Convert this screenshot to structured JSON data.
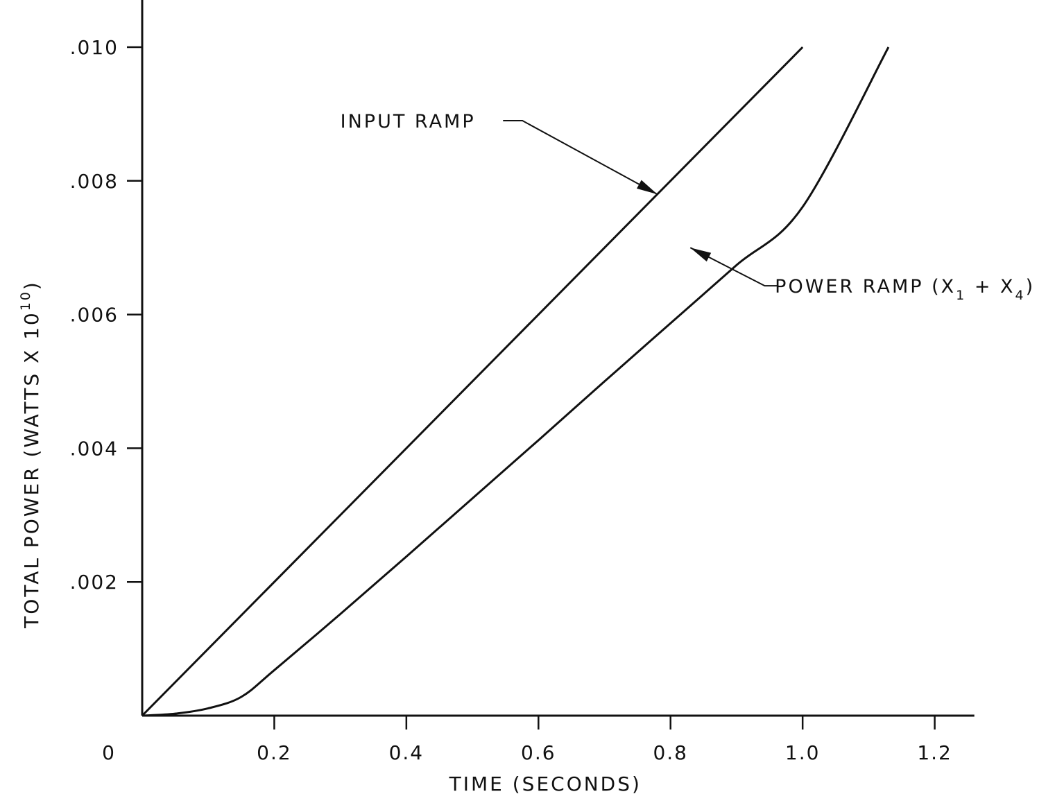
{
  "chart_data": {
    "type": "line",
    "title": "",
    "xlabel": "TIME (SECONDS)",
    "ylabel": "TOTAL POWER (WATTS X 10",
    "ylabel_superscript": "10",
    "ylabel_close": ")",
    "xlim": [
      0,
      1.26
    ],
    "ylim": [
      0,
      0.0104
    ],
    "x_ticks": [
      {
        "value": 0,
        "label": "0"
      },
      {
        "value": 0.2,
        "label": "0.2"
      },
      {
        "value": 0.4,
        "label": "0.4"
      },
      {
        "value": 0.6,
        "label": "0.6"
      },
      {
        "value": 0.8,
        "label": "0.8"
      },
      {
        "value": 1.0,
        "label": "1.0"
      },
      {
        "value": 1.2,
        "label": "1.2"
      }
    ],
    "y_ticks": [
      {
        "value": 0.002,
        "label": ".002"
      },
      {
        "value": 0.004,
        "label": ".004"
      },
      {
        "value": 0.006,
        "label": ".006"
      },
      {
        "value": 0.008,
        "label": ".008"
      },
      {
        "value": 0.01,
        "label": ".010"
      }
    ],
    "grid": false,
    "legend": "none",
    "series": [
      {
        "name": "INPUT RAMP",
        "x": [
          0,
          1.0
        ],
        "y": [
          0,
          0.01
        ]
      },
      {
        "name": "POWER RAMP (X1 + X4)",
        "x": [
          0,
          0.05,
          0.1,
          0.15,
          0.2,
          0.3,
          0.4,
          0.5,
          0.6,
          0.7,
          0.8,
          0.9,
          1.0,
          1.13
        ],
        "y": [
          0,
          3e-05,
          0.00011,
          0.00028,
          0.00068,
          0.00152,
          0.00238,
          0.00325,
          0.00412,
          0.005,
          0.00587,
          0.00674,
          0.00761,
          0.01
        ]
      }
    ],
    "annotations": [
      {
        "id": "input-ramp",
        "text": "INPUT RAMP",
        "target": {
          "x": 0.78,
          "y": 0.0078
        },
        "label_at": {
          "x": 0.3,
          "y": 0.0089
        },
        "elbow": {
          "x": 0.58,
          "y": 0.0089
        }
      },
      {
        "id": "power-ramp",
        "text": "POWER RAMP (X",
        "sub1": "1",
        "mid": " + X",
        "sub2": "4",
        "close": ")",
        "target": {
          "x": 0.83,
          "y": 0.007
        },
        "label_at": {
          "x": 0.958,
          "y": 0.00643
        },
        "elbow": {
          "x": 0.93,
          "y": 0.00643
        }
      }
    ]
  }
}
